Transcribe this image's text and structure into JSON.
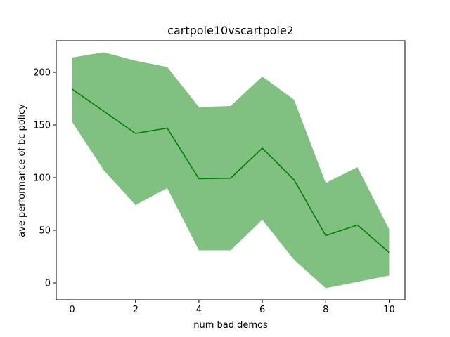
{
  "chart_data": {
    "type": "line",
    "title": "cartpole10vscartpole2",
    "xlabel": "num bad demos",
    "ylabel": "ave performance of bc policy",
    "xlim": [
      -0.5,
      10.5
    ],
    "ylim": [
      -16,
      230
    ],
    "x_ticks": [
      0,
      2,
      4,
      6,
      8,
      10
    ],
    "y_ticks": [
      0,
      50,
      100,
      150,
      200
    ],
    "grid": false,
    "series": [
      {
        "x": [
          0,
          1,
          2,
          3,
          4,
          5,
          6,
          7,
          8,
          9,
          10
        ],
        "mean": [
          184,
          163,
          142,
          147,
          99,
          99.5,
          128,
          98,
          45,
          55,
          29
        ],
        "upper": [
          214,
          219,
          211,
          205,
          167,
          168,
          196,
          174,
          95,
          110,
          51
        ],
        "lower": [
          153,
          107,
          74,
          90,
          31,
          31,
          60,
          22,
          -5,
          1,
          7
        ],
        "line_color": "#008000",
        "band_color": "#80c080"
      }
    ]
  }
}
